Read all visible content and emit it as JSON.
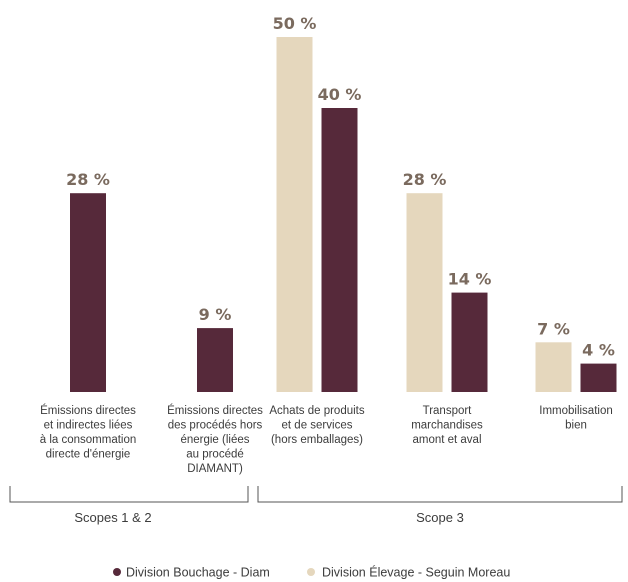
{
  "chart_data": {
    "type": "bar",
    "categories": [
      [
        "Émissions directes",
        "et indirectes liées",
        "à la consommation",
        "directe d'énergie"
      ],
      [
        "Émissions directes",
        "des procédés hors",
        "énergie (liées",
        "au procédé",
        "DIAMANT)"
      ],
      [
        "Achats de produits",
        "et de services",
        "(hors emballages)"
      ],
      [
        "Transport",
        "marchandises",
        "amont et aval"
      ],
      [
        "Immobilisation",
        "bien"
      ]
    ],
    "series": [
      {
        "name": "Division Élevage - Seguin Moreau",
        "color": "#e5d7bd",
        "values": [
          null,
          null,
          50,
          28,
          7
        ],
        "labels": [
          "",
          "",
          "50 %",
          "28 %",
          "7 %"
        ]
      },
      {
        "name": "Division Bouchage - Diam",
        "color": "#56293a",
        "values": [
          28,
          9,
          40,
          14,
          4
        ],
        "labels": [
          "28 %",
          "9 %",
          "40 %",
          "14 %",
          "4 %"
        ]
      }
    ],
    "groups": [
      {
        "label": "Scopes 1 & 2",
        "categories": [
          0,
          1
        ]
      },
      {
        "label": "Scope 3",
        "categories": [
          2,
          3,
          4
        ]
      }
    ],
    "ylim": [
      0,
      50
    ],
    "value_unit": "%",
    "grid": false,
    "legend": {
      "position": "bottom",
      "entries": [
        {
          "label": "Division Bouchage - Diam",
          "color": "#56293a"
        },
        {
          "label": "Division Élevage - Seguin Moreau",
          "color": "#e5d7bd"
        }
      ]
    }
  }
}
